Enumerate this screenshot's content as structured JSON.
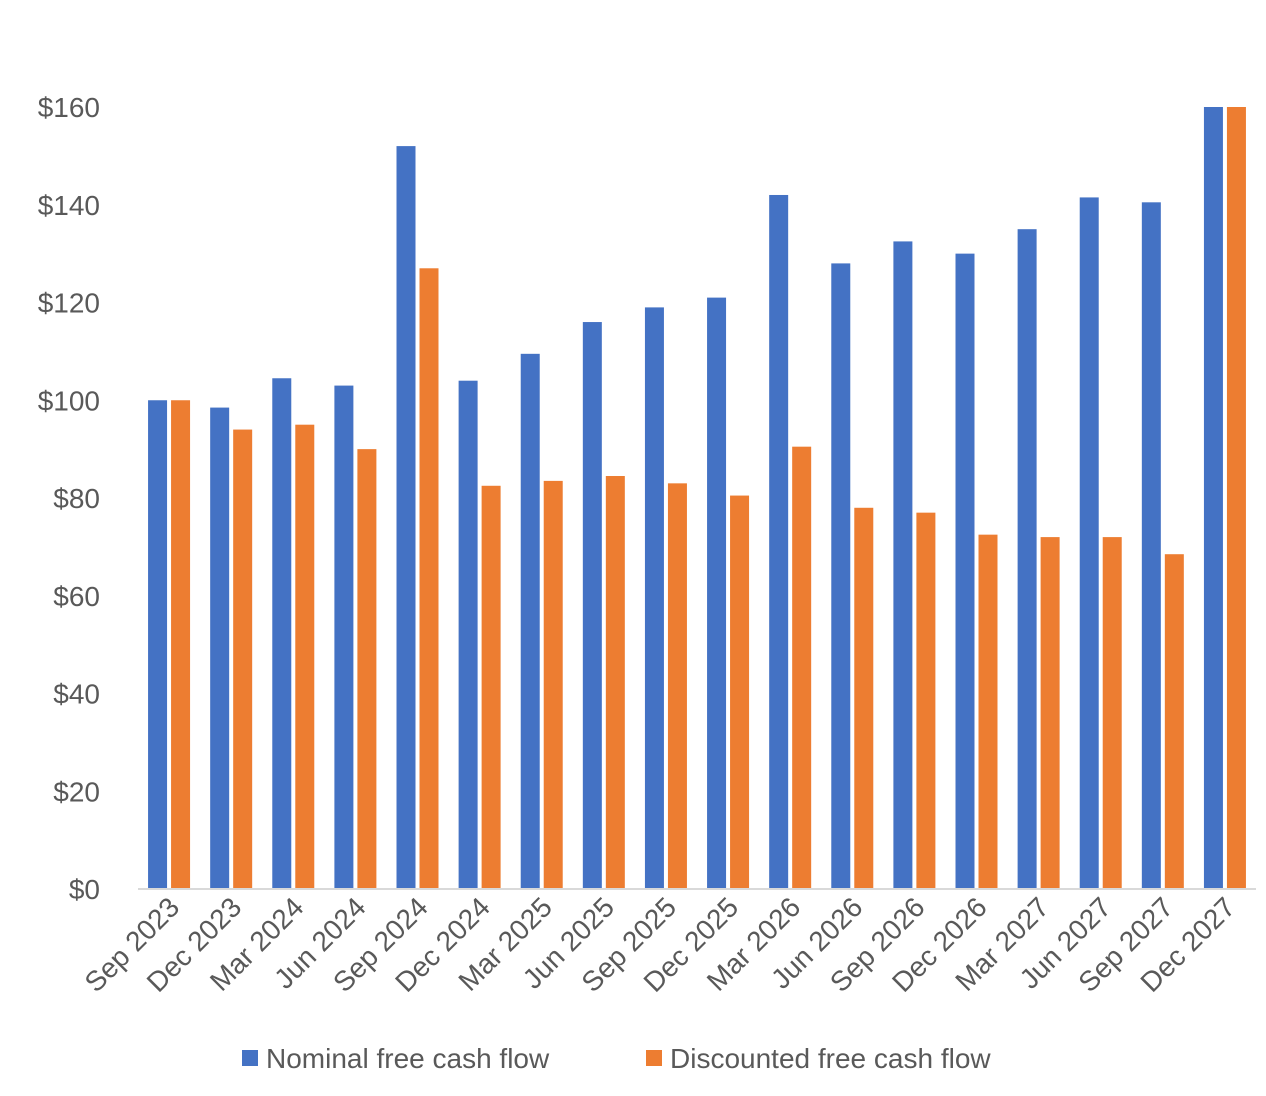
{
  "chart_data": {
    "type": "bar",
    "title": "",
    "xlabel": "",
    "ylabel": "",
    "ylim": [
      0,
      160
    ],
    "y_ticks": [
      0,
      20,
      40,
      60,
      80,
      100,
      120,
      140,
      160
    ],
    "y_tick_labels": [
      "$0",
      "$20",
      "$40",
      "$60",
      "$80",
      "$100",
      "$120",
      "$140",
      "$160"
    ],
    "grid": false,
    "legend_position": "bottom",
    "categories": [
      "Sep 2023",
      "Dec 2023",
      "Mar 2024",
      "Jun 2024",
      "Sep 2024",
      "Dec 2024",
      "Mar 2025",
      "Jun 2025",
      "Sep 2025",
      "Dec 2025",
      "Mar 2026",
      "Jun 2026",
      "Sep 2026",
      "Dec 2026",
      "Mar 2027",
      "Jun 2027",
      "Sep 2027",
      "Dec 2027"
    ],
    "series": [
      {
        "name": "Nominal free cash flow",
        "color": "#4472C4",
        "values": [
          100,
          98.5,
          104.5,
          103,
          152,
          104,
          109.5,
          116,
          119,
          121,
          142,
          128,
          132.5,
          130,
          135,
          141.5,
          140.5,
          160
        ]
      },
      {
        "name": "Discounted free cash flow",
        "color": "#ED7D31",
        "values": [
          100,
          94,
          95,
          90,
          127,
          82.5,
          83.5,
          84.5,
          83,
          80.5,
          90.5,
          78,
          77,
          72.5,
          72,
          72,
          68.5,
          160
        ]
      }
    ]
  }
}
